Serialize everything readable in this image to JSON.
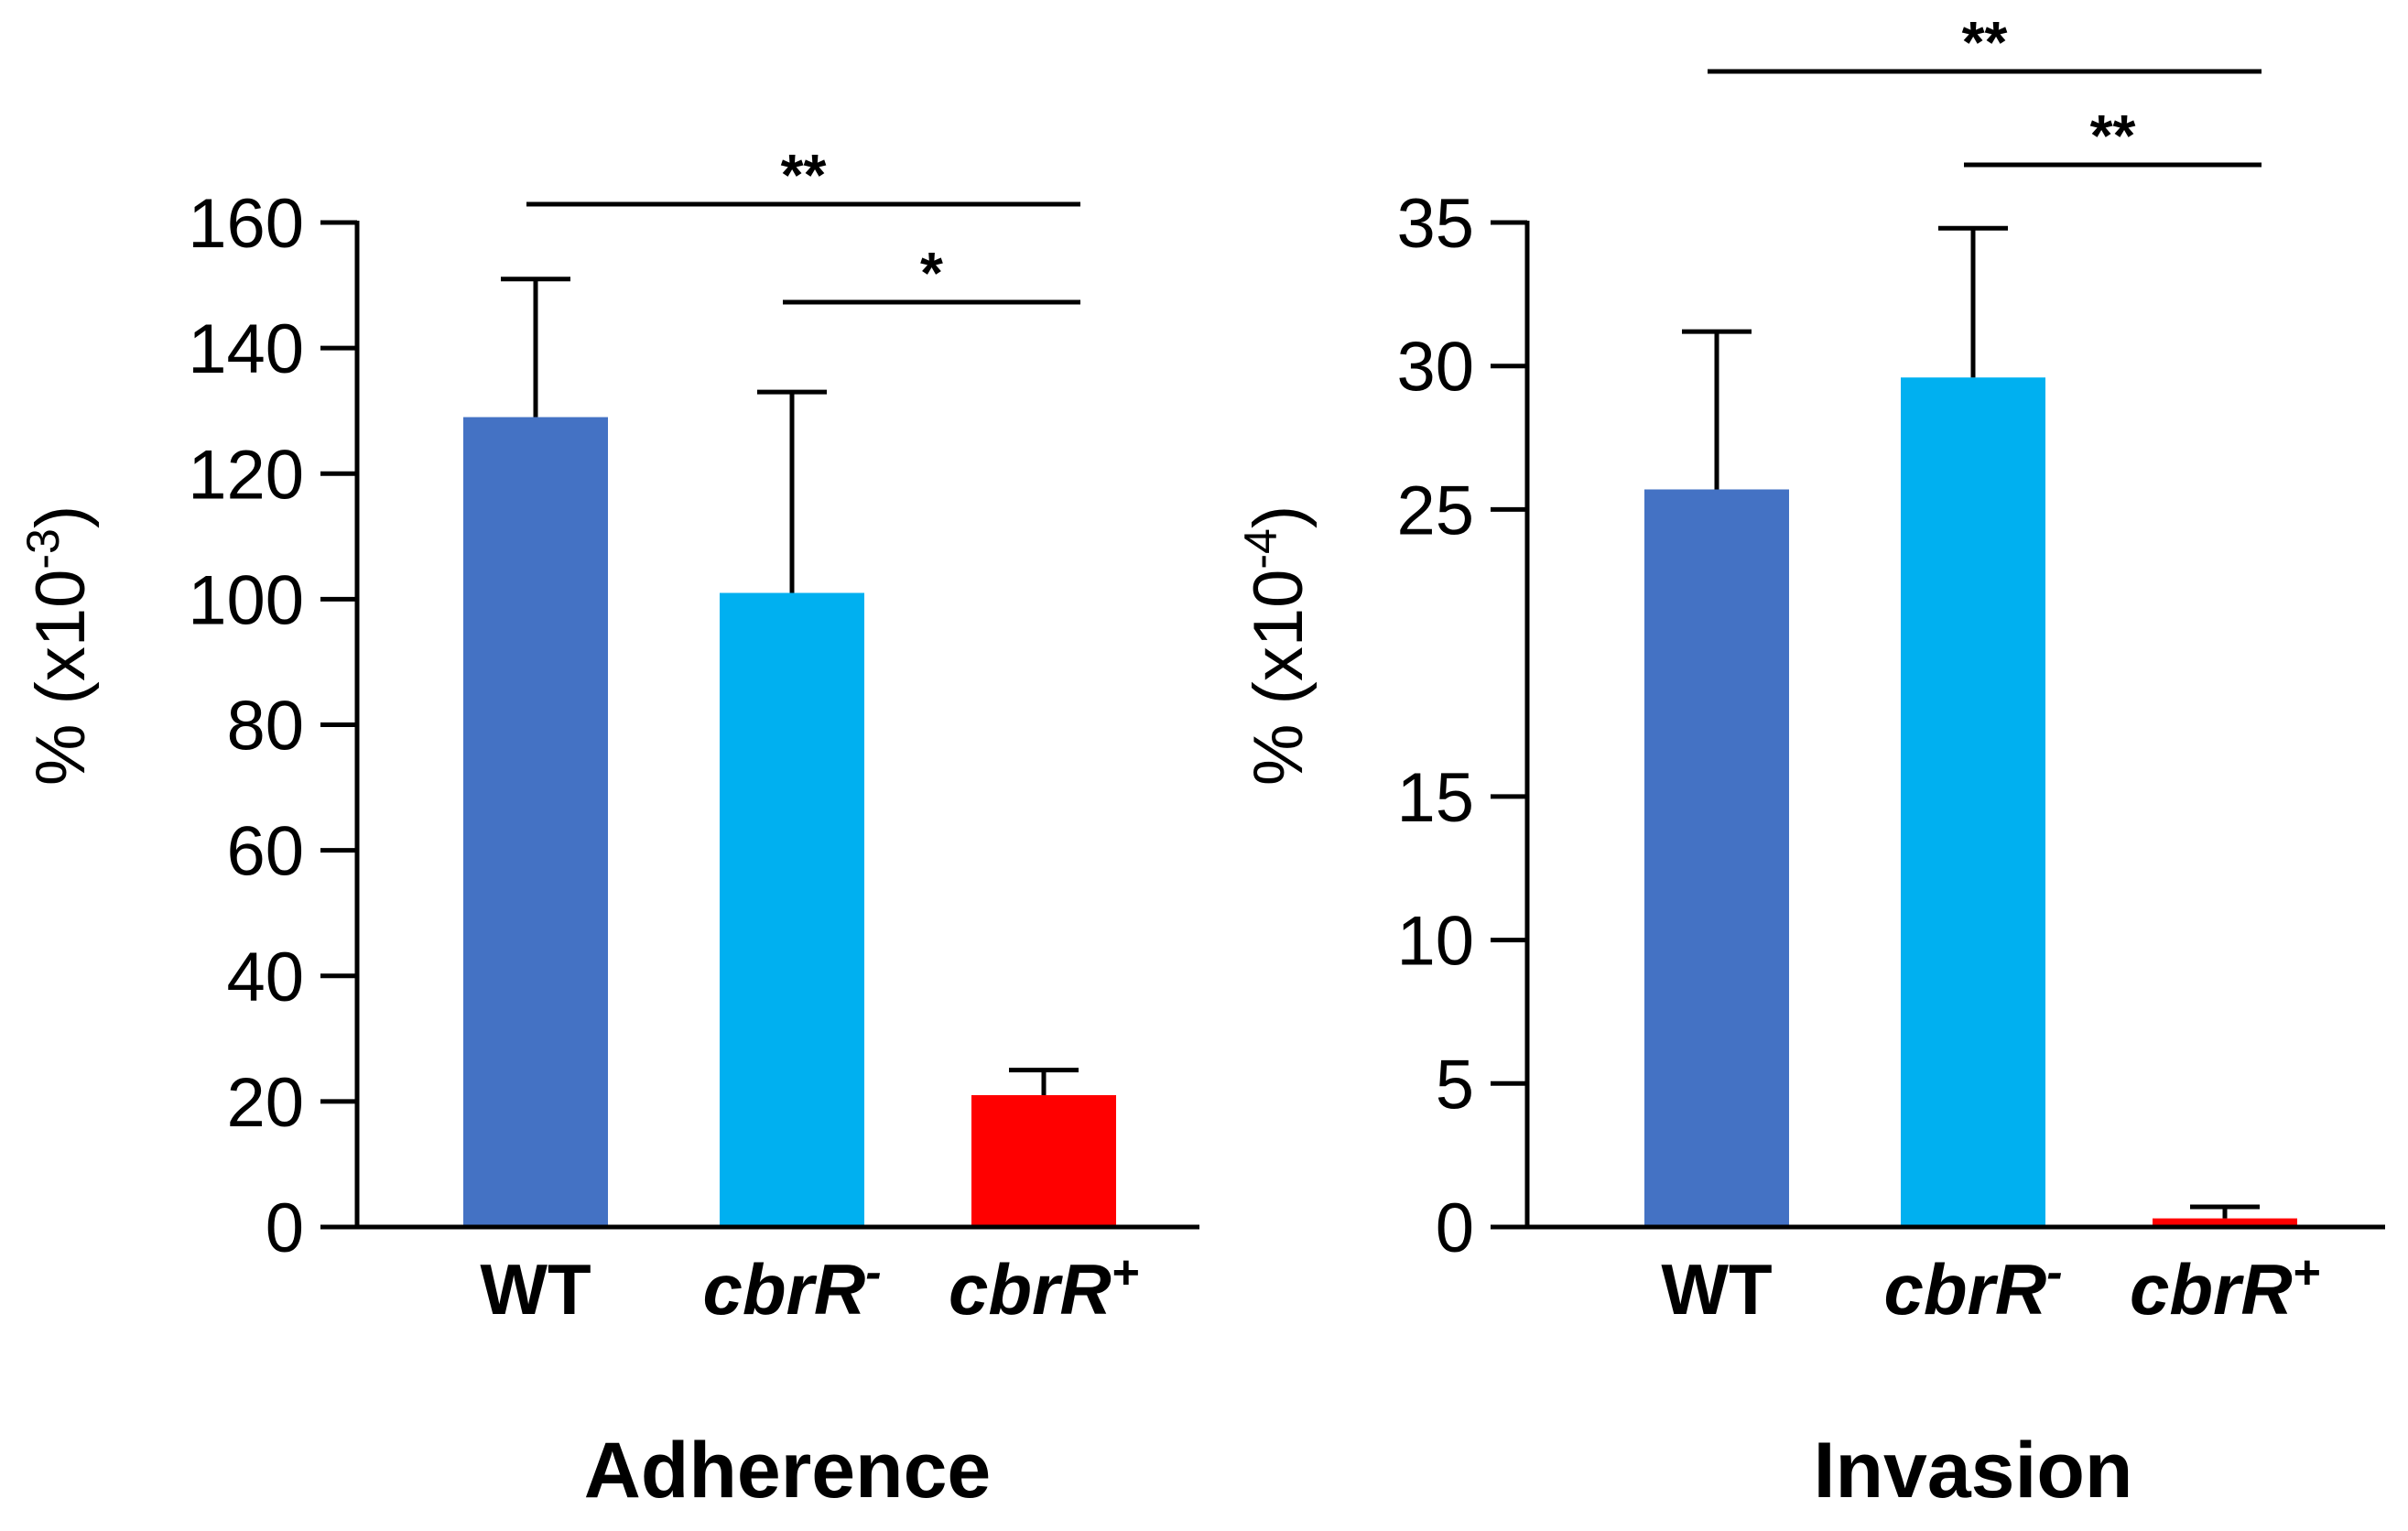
{
  "chart_data": [
    {
      "type": "bar",
      "title": "Adherence",
      "ylabel": "% (x10",
      "ylabel_exp": "-3",
      "ylabel_close": ")",
      "ylim": [
        0,
        160
      ],
      "yticks": [
        0,
        20,
        40,
        60,
        80,
        100,
        120,
        140,
        160
      ],
      "categories": [
        {
          "base": "WT",
          "sup": "",
          "italic": false
        },
        {
          "base": "cbrR",
          "sup": "-",
          "italic": true
        },
        {
          "base": "cbrR",
          "sup": "+",
          "italic": true
        }
      ],
      "values": [
        129,
        101,
        21
      ],
      "errors": [
        22,
        32,
        4
      ],
      "colors": [
        "#4472c4",
        "#00b0f0",
        "#ff0000"
      ],
      "significance": [
        {
          "from": 0,
          "to": 2,
          "label": "**"
        },
        {
          "from": 1,
          "to": 2,
          "label": "*"
        }
      ]
    },
    {
      "type": "bar",
      "title": "Invasion",
      "ylabel": "% (x10",
      "ylabel_exp": "-4",
      "ylabel_close": ")",
      "ylim": [
        0,
        35
      ],
      "yticks": [
        0,
        5,
        10,
        15,
        25,
        30,
        35
      ],
      "categories": [
        {
          "base": "WT",
          "sup": "",
          "italic": false
        },
        {
          "base": "cbrR",
          "sup": "-",
          "italic": true
        },
        {
          "base": "cbrR",
          "sup": "+",
          "italic": true
        }
      ],
      "values": [
        25.7,
        29.6,
        0.3
      ],
      "errors": [
        5.5,
        5.2,
        0.4
      ],
      "colors": [
        "#4472c4",
        "#00b0f0",
        "#ff0000"
      ],
      "significance": [
        {
          "from": 0,
          "to": 2,
          "label": "**"
        },
        {
          "from": 1,
          "to": 2,
          "label": "**"
        }
      ]
    }
  ]
}
